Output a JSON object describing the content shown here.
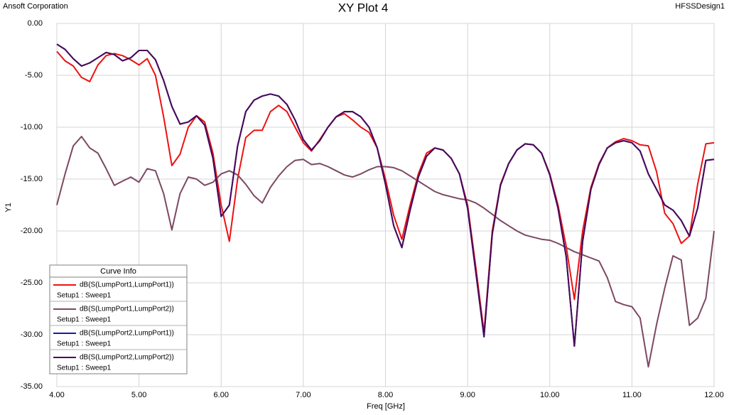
{
  "chart_data": {
    "type": "line",
    "company": "Ansoft Corporation",
    "title": "XY Plot 4",
    "design": "HFSSDesign1",
    "x_label": "Freq [GHz]",
    "y_label": "Y1",
    "legend_title": "Curve Info",
    "legend": "lower left",
    "grid": true,
    "xlim": [
      4,
      12
    ],
    "ylim": [
      -35,
      0
    ],
    "xticks": [
      {
        "value": 4,
        "label": "4.00"
      },
      {
        "value": 5,
        "label": "5.00"
      },
      {
        "value": 6,
        "label": "6.00"
      },
      {
        "value": 7,
        "label": "7.00"
      },
      {
        "value": 8,
        "label": "8.00"
      },
      {
        "value": 9,
        "label": "9.00"
      },
      {
        "value": 10,
        "label": "10.00"
      },
      {
        "value": 11,
        "label": "11.00"
      },
      {
        "value": 12,
        "label": "12.00"
      }
    ],
    "yticks": [
      {
        "value": 0,
        "label": "0.00"
      },
      {
        "value": -5,
        "label": "-5.00"
      },
      {
        "value": -10,
        "label": "-10.00"
      },
      {
        "value": -15,
        "label": "-15.00"
      },
      {
        "value": -20,
        "label": "-20.00"
      },
      {
        "value": -25,
        "label": "-25.00"
      },
      {
        "value": -30,
        "label": "-30.00"
      },
      {
        "value": -35,
        "label": "-35.00"
      }
    ],
    "x": [
      4,
      4.1,
      4.2,
      4.3,
      4.4,
      4.5,
      4.6,
      4.7,
      4.8,
      4.9,
      5,
      5.1,
      5.2,
      5.3,
      5.4,
      5.5,
      5.6,
      5.7,
      5.8,
      5.9,
      6,
      6.1,
      6.2,
      6.3,
      6.4,
      6.5,
      6.6,
      6.7,
      6.8,
      6.9,
      7,
      7.1,
      7.2,
      7.3,
      7.4,
      7.5,
      7.6,
      7.7,
      7.8,
      7.9,
      8,
      8.1,
      8.2,
      8.3,
      8.4,
      8.5,
      8.6,
      8.7,
      8.8,
      8.9,
      9,
      9.1,
      9.2,
      9.3,
      9.4,
      9.5,
      9.6,
      9.7,
      9.8,
      9.9,
      10,
      10.1,
      10.2,
      10.3,
      10.4,
      10.5,
      10.6,
      10.7,
      10.8,
      10.9,
      11,
      11.1,
      11.2,
      11.3,
      11.4,
      11.5,
      11.6,
      11.7,
      11.8,
      11.9,
      12
    ],
    "series": [
      {
        "name": "dB(S(LumpPort1,LumpPort1))",
        "solution": "Setup1 : Sweep1",
        "color": "#ee1111",
        "values": [
          -2.7,
          -3.6,
          -4.1,
          -5.2,
          -5.6,
          -4.0,
          -3.1,
          -2.9,
          -3.1,
          -3.5,
          -4.0,
          -3.4,
          -5.0,
          -9.0,
          -13.7,
          -12.6,
          -10.0,
          -8.9,
          -9.5,
          -12.5,
          -17.5,
          -21.0,
          -15.0,
          -11.0,
          -10.3,
          -10.3,
          -8.5,
          -7.9,
          -8.5,
          -10.0,
          -11.5,
          -12.3,
          -11.2,
          -10.0,
          -9.0,
          -8.7,
          -9.3,
          -10.0,
          -10.5,
          -12.0,
          -15.0,
          -18.5,
          -20.8,
          -17.5,
          -14.5,
          -12.5,
          -12.0,
          -12.2,
          -13.0,
          -14.5,
          -17.5,
          -23.5,
          -29.8,
          -20.0,
          -15.5,
          -13.5,
          -12.2,
          -11.6,
          -11.7,
          -12.5,
          -14.5,
          -17.5,
          -21.5,
          -26.6,
          -20.0,
          -15.8,
          -13.5,
          -12.0,
          -11.4,
          -11.1,
          -11.3,
          -11.7,
          -11.8,
          -14.3,
          -18.3,
          -19.3,
          -21.2,
          -20.5,
          -15.5,
          -11.6,
          -11.5
        ]
      },
      {
        "name": "dB(S(LumpPort1,LumpPort2))",
        "solution": "Setup1 : Sweep1",
        "color": "#7d4862",
        "values": [
          -17.5,
          -14.5,
          -11.8,
          -10.9,
          -12.0,
          -12.5,
          -14.0,
          -15.6,
          -15.2,
          -14.8,
          -15.3,
          -14.0,
          -14.2,
          -16.4,
          -19.9,
          -16.4,
          -14.8,
          -15.0,
          -15.6,
          -15.3,
          -14.5,
          -14.2,
          -14.6,
          -15.5,
          -16.6,
          -17.3,
          -15.8,
          -14.7,
          -13.8,
          -13.2,
          -13.1,
          -13.6,
          -13.5,
          -13.8,
          -14.2,
          -14.6,
          -14.8,
          -14.5,
          -14.1,
          -13.8,
          -13.8,
          -13.9,
          -14.2,
          -14.7,
          -15.2,
          -15.7,
          -16.2,
          -16.5,
          -16.7,
          -16.9,
          -17.0,
          -17.3,
          -17.8,
          -18.4,
          -19.0,
          -19.5,
          -20.0,
          -20.4,
          -20.6,
          -20.8,
          -20.9,
          -21.2,
          -21.6,
          -22.0,
          -22.3,
          -22.6,
          -22.9,
          -24.5,
          -26.8,
          -27.1,
          -27.3,
          -28.4,
          -33.1,
          -29.0,
          -25.5,
          -22.4,
          -22.8,
          -29.1,
          -28.4,
          -26.5,
          -20.0
        ]
      },
      {
        "name": "dB(S(LumpPort2,LumpPort1))",
        "solution": "Setup1 : Sweep1",
        "color": "#1a1aa8",
        "values": [
          -2.0,
          -2.5,
          -3.4,
          -4.1,
          -3.8,
          -3.3,
          -2.8,
          -3.0,
          -3.6,
          -3.3,
          -2.6,
          -2.6,
          -3.5,
          -5.5,
          -8.0,
          -9.7,
          -9.5,
          -8.9,
          -9.8,
          -13.0,
          -18.6,
          -17.5,
          -11.8,
          -8.5,
          -7.4,
          -7.0,
          -6.8,
          -7.0,
          -7.8,
          -9.3,
          -11.2,
          -12.2,
          -11.3,
          -10.0,
          -9.0,
          -8.5,
          -8.5,
          -9.0,
          -10.0,
          -12.0,
          -15.5,
          -19.5,
          -21.6,
          -18.0,
          -14.8,
          -12.8,
          -12.0,
          -12.2,
          -13.0,
          -14.5,
          -17.8,
          -24.0,
          -30.2,
          -20.3,
          -15.6,
          -13.5,
          -12.2,
          -11.6,
          -11.7,
          -12.5,
          -14.6,
          -17.8,
          -22.5,
          -31.1,
          -21.0,
          -16.0,
          -13.6,
          -12.0,
          -11.5,
          -11.3,
          -11.5,
          -12.3,
          -14.5,
          -16.0,
          -17.5,
          -18.0,
          -19.0,
          -20.5,
          -17.8,
          -13.2,
          -13.1
        ]
      },
      {
        "name": "dB(S(LumpPort2,LumpPort2))",
        "solution": "Setup1 : Sweep1",
        "color": "#4a0a58",
        "values": [
          -2.0,
          -2.5,
          -3.4,
          -4.1,
          -3.8,
          -3.3,
          -2.8,
          -3.0,
          -3.6,
          -3.3,
          -2.6,
          -2.6,
          -3.5,
          -5.5,
          -8.0,
          -9.7,
          -9.5,
          -8.9,
          -9.8,
          -13.0,
          -18.6,
          -17.5,
          -11.8,
          -8.5,
          -7.4,
          -7.0,
          -6.8,
          -7.0,
          -7.8,
          -9.3,
          -11.2,
          -12.2,
          -11.3,
          -10.0,
          -9.0,
          -8.5,
          -8.5,
          -9.0,
          -10.0,
          -12.0,
          -15.5,
          -19.5,
          -21.6,
          -18.0,
          -14.8,
          -12.8,
          -12.0,
          -12.2,
          -13.0,
          -14.5,
          -17.8,
          -24.0,
          -30.2,
          -20.3,
          -15.6,
          -13.5,
          -12.2,
          -11.6,
          -11.7,
          -12.5,
          -14.6,
          -17.8,
          -22.5,
          -31.1,
          -21.0,
          -16.0,
          -13.6,
          -12.0,
          -11.5,
          -11.3,
          -11.5,
          -12.3,
          -14.5,
          -16.0,
          -17.5,
          -18.0,
          -19.0,
          -20.5,
          -17.8,
          -13.2,
          -13.1
        ]
      }
    ]
  }
}
